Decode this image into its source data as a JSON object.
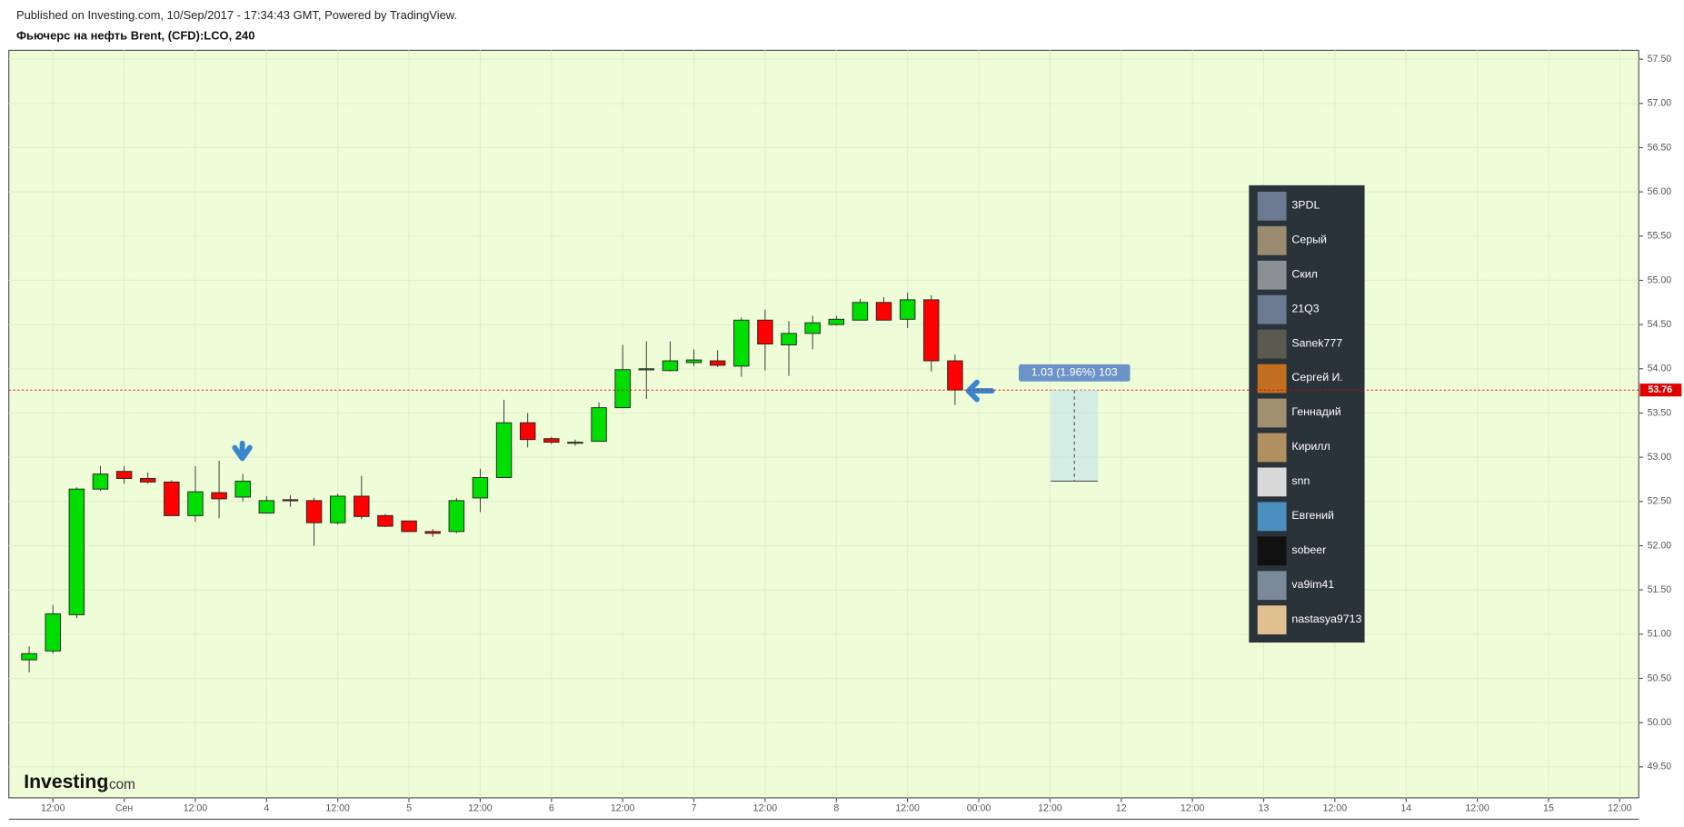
{
  "chart_data": {
    "type": "candlestick",
    "subtitle": "Published on Investing.com, 10/Sep/2017 - 17:34:43 GMT, Powered by TradingView.",
    "title": "Фьючерс на нефть Brent, (CFD):LCO, 240",
    "x": [
      0,
      1,
      2,
      3,
      4,
      5,
      6,
      7,
      8,
      9,
      10,
      11,
      12,
      13,
      14,
      15,
      16,
      17,
      18,
      19,
      20,
      21,
      22,
      23,
      24,
      25,
      26,
      27,
      28,
      29,
      30,
      31,
      32,
      33,
      34,
      35,
      36,
      37,
      38,
      39
    ],
    "open": [
      50.71,
      50.81,
      51.22,
      52.64,
      52.84,
      52.76,
      52.72,
      52.34,
      52.6,
      52.55,
      52.37,
      52.52,
      52.51,
      52.26,
      52.56,
      52.34,
      52.28,
      52.16,
      52.16,
      52.54,
      52.77,
      53.39,
      53.21,
      53.16,
      53.18,
      53.56,
      53.99,
      53.98,
      54.07,
      54.09,
      54.03,
      54.55,
      54.27,
      54.4,
      54.5,
      54.55,
      54.75,
      54.56,
      54.78,
      54.09
    ],
    "high": [
      50.86,
      51.33,
      52.66,
      52.9,
      52.9,
      52.83,
      52.74,
      52.9,
      52.96,
      52.81,
      52.56,
      52.57,
      52.54,
      52.59,
      52.79,
      52.36,
      52.28,
      52.19,
      52.54,
      52.87,
      53.65,
      53.5,
      53.23,
      53.2,
      53.62,
      54.27,
      54.31,
      54.31,
      54.22,
      54.21,
      54.58,
      54.67,
      54.54,
      54.6,
      54.6,
      54.79,
      54.81,
      54.86,
      54.83,
      54.16
    ],
    "low": [
      50.57,
      50.78,
      51.18,
      52.62,
      52.7,
      52.7,
      52.34,
      52.27,
      52.31,
      52.5,
      52.37,
      52.44,
      52.0,
      52.24,
      52.3,
      52.21,
      52.16,
      52.1,
      52.14,
      52.38,
      52.77,
      53.11,
      53.15,
      53.13,
      53.18,
      53.56,
      53.66,
      53.97,
      54.03,
      54.02,
      53.91,
      53.98,
      53.92,
      54.22,
      54.49,
      54.55,
      54.55,
      54.46,
      53.97,
      53.59
    ],
    "close": [
      50.78,
      51.23,
      52.64,
      52.81,
      52.76,
      52.72,
      52.34,
      52.61,
      52.53,
      52.73,
      52.51,
      52.51,
      52.26,
      52.56,
      52.33,
      52.22,
      52.16,
      52.14,
      52.51,
      52.77,
      53.39,
      53.2,
      53.17,
      53.17,
      53.56,
      53.99,
      54.0,
      54.09,
      54.1,
      54.04,
      54.55,
      54.28,
      54.4,
      54.52,
      54.56,
      54.75,
      54.55,
      54.78,
      54.09,
      53.76
    ],
    "up_color": "#00dd00",
    "down_color": "#ff0000",
    "xlim": [
      -0.857,
      67.8
    ],
    "xticks": [
      {
        "value": 1,
        "label": "12:00"
      },
      {
        "value": 4,
        "label": "Сен"
      },
      {
        "value": 7,
        "label": "12:00"
      },
      {
        "value": 10,
        "label": "4"
      },
      {
        "value": 13,
        "label": "12:00"
      },
      {
        "value": 16,
        "label": "5"
      },
      {
        "value": 19,
        "label": "12:00"
      },
      {
        "value": 22,
        "label": "6"
      },
      {
        "value": 25,
        "label": "12:00"
      },
      {
        "value": 28,
        "label": "7"
      },
      {
        "value": 31,
        "label": "12:00"
      },
      {
        "value": 34,
        "label": "8"
      },
      {
        "value": 37,
        "label": "12:00"
      },
      {
        "value": 40,
        "label": "00:00"
      },
      {
        "value": 43,
        "label": "12:00"
      },
      {
        "value": 46,
        "label": "12"
      },
      {
        "value": 49,
        "label": "12:00"
      },
      {
        "value": 52,
        "label": "13"
      },
      {
        "value": 55,
        "label": "12:00"
      },
      {
        "value": 58,
        "label": "14"
      },
      {
        "value": 61,
        "label": "12:00"
      },
      {
        "value": 64,
        "label": "15"
      },
      {
        "value": 67,
        "label": "12:00"
      }
    ],
    "ylim": [
      49.15,
      57.6
    ],
    "yticks": [
      {
        "value": 49.5,
        "label": "49.50"
      },
      {
        "value": 50,
        "label": "50.00"
      },
      {
        "value": 50.5,
        "label": "50.50"
      },
      {
        "value": 51,
        "label": "51.00"
      },
      {
        "value": 51.5,
        "label": "51.50"
      },
      {
        "value": 52,
        "label": "52.00"
      },
      {
        "value": 52.5,
        "label": "52.50"
      },
      {
        "value": 53,
        "label": "53.00"
      },
      {
        "value": 53.5,
        "label": "53.50"
      },
      {
        "value": 54,
        "label": "54.00"
      },
      {
        "value": 54.5,
        "label": "54.50"
      },
      {
        "value": 55,
        "label": "55.00"
      },
      {
        "value": 55.5,
        "label": "55.50"
      },
      {
        "value": 56,
        "label": "56.00"
      },
      {
        "value": 56.5,
        "label": "56.50"
      },
      {
        "value": 57,
        "label": "57.00"
      },
      {
        "value": 57.5,
        "label": "57.50"
      }
    ],
    "grid": true,
    "last_price": 53.76,
    "measure": {
      "label": "1.03 (1.96%) 103",
      "from": 53.76,
      "to": 52.73
    },
    "watermark": [
      "Investing",
      ".com"
    ],
    "users": [
      "3PDL",
      "Серый",
      "Скил",
      "21Q3",
      "Sanek777",
      "Сергей И.",
      "Геннадий",
      "Кирилл",
      "snn",
      "Евгений",
      "sobeer",
      "va9im41",
      "nastasya9713"
    ]
  }
}
